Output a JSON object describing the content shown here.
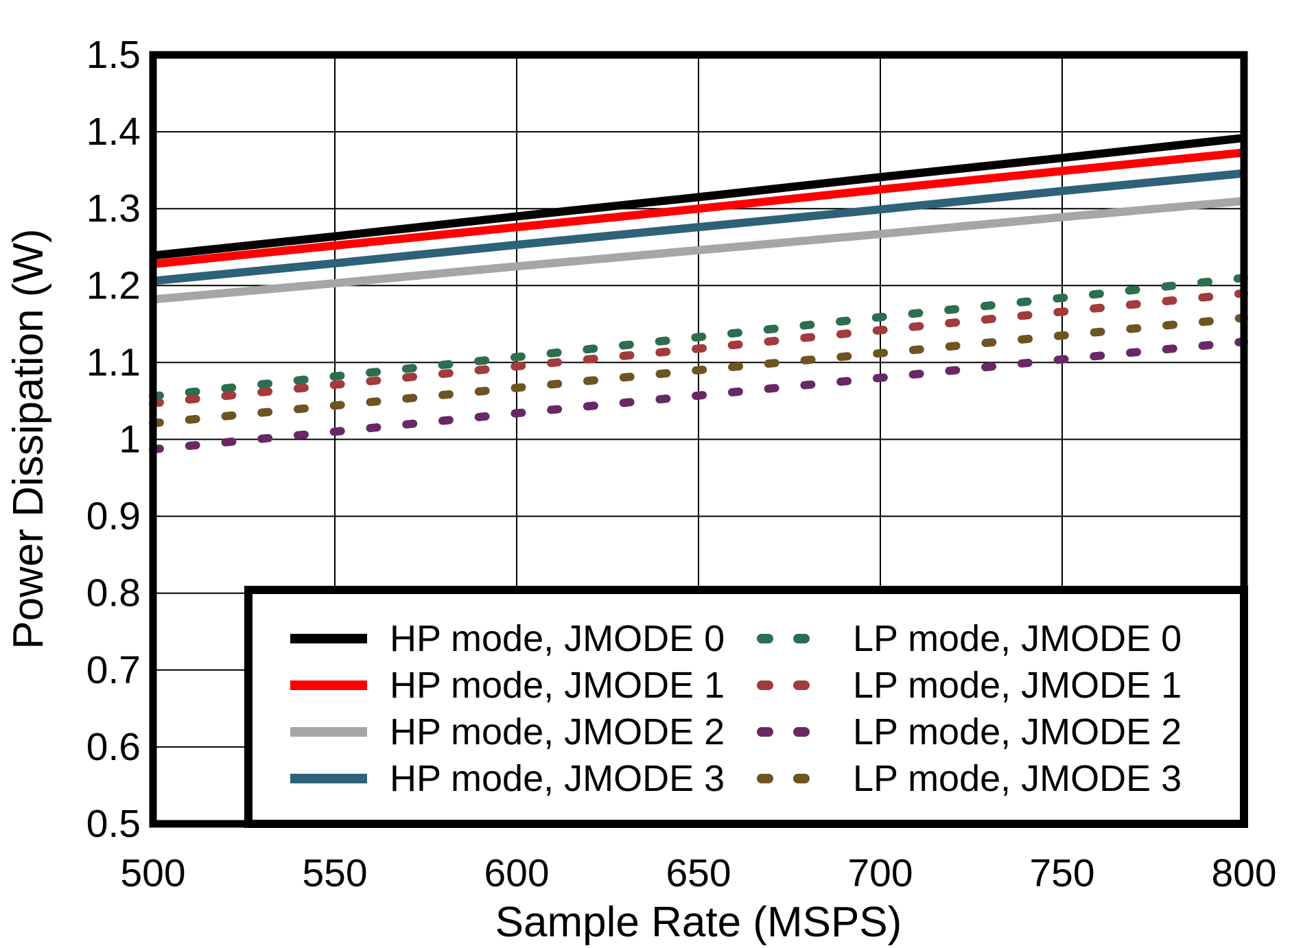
{
  "chart_data": {
    "type": "line",
    "title": "",
    "xlabel": "Sample Rate (MSPS)",
    "ylabel": "Power Dissipation (W)",
    "xlim": [
      500,
      800
    ],
    "ylim": [
      0.5,
      1.5
    ],
    "grid": true,
    "legend_position": "bottom-inside",
    "x_ticks": [
      500,
      550,
      600,
      650,
      700,
      750,
      800
    ],
    "x_tick_labels": [
      "500",
      "550",
      "600",
      "650",
      "700",
      "750",
      "800"
    ],
    "y_ticks": [
      0.5,
      0.6,
      0.7,
      0.8,
      0.9,
      1.0,
      1.1,
      1.2,
      1.3,
      1.4,
      1.5
    ],
    "y_tick_labels": [
      "0.5",
      "0.6",
      "0.7",
      "0.8",
      "0.9",
      "1",
      "1.1",
      "1.2",
      "1.3",
      "1.4",
      "1.5"
    ],
    "x": [
      500,
      550,
      600,
      650,
      700,
      750,
      800
    ],
    "series": [
      {
        "name": "HP mode, JMODE 0",
        "color": "#000000",
        "style": "solid",
        "values": [
          1.239,
          1.264,
          1.29,
          1.315,
          1.341,
          1.366,
          1.392
        ]
      },
      {
        "name": "HP mode, JMODE 1",
        "color": "#FF0000",
        "style": "solid",
        "values": [
          1.228,
          1.252,
          1.276,
          1.3,
          1.325,
          1.349,
          1.373
        ]
      },
      {
        "name": "HP mode, JMODE 2",
        "color": "#A6A6A6",
        "style": "solid",
        "values": [
          1.182,
          1.203,
          1.225,
          1.246,
          1.267,
          1.289,
          1.31
        ]
      },
      {
        "name": "HP mode, JMODE 3",
        "color": "#2E617A",
        "style": "solid",
        "values": [
          1.206,
          1.229,
          1.253,
          1.276,
          1.299,
          1.323,
          1.346
        ]
      },
      {
        "name": "LP mode, JMODE 0",
        "color": "#2C6E4D",
        "style": "dashed",
        "values": [
          1.056,
          1.082,
          1.107,
          1.133,
          1.159,
          1.184,
          1.21
        ]
      },
      {
        "name": "LP mode, JMODE 1",
        "color": "#A23B3C",
        "style": "dashed",
        "values": [
          1.047,
          1.071,
          1.095,
          1.118,
          1.142,
          1.166,
          1.19
        ]
      },
      {
        "name": "LP mode, JMODE 2",
        "color": "#682866",
        "style": "dashed",
        "values": [
          0.987,
          1.01,
          1.034,
          1.057,
          1.08,
          1.104,
          1.127
        ]
      },
      {
        "name": "LP mode, JMODE 3",
        "color": "#6E5421",
        "style": "dashed",
        "values": [
          1.021,
          1.044,
          1.067,
          1.09,
          1.112,
          1.135,
          1.158
        ]
      }
    ],
    "legend_columns": [
      [
        "HP mode, JMODE 0",
        "HP mode, JMODE 1",
        "HP mode, JMODE 2",
        "HP mode, JMODE 3"
      ],
      [
        "LP mode, JMODE 0",
        "LP mode, JMODE 1",
        "LP mode, JMODE 2",
        "LP mode, JMODE 3"
      ]
    ]
  }
}
